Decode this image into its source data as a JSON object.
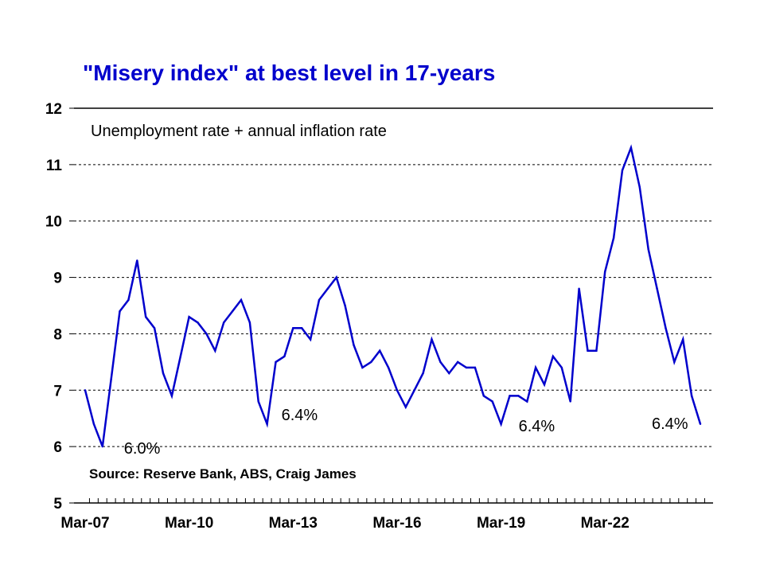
{
  "chart_data": {
    "type": "line",
    "title": "\"Misery index\" at best level in 17-years",
    "subtitle": "Unemployment rate + annual inflation rate",
    "source": "Source: Reserve Bank, ABS, Craig James",
    "xlabel": "",
    "ylabel": "",
    "ylim": [
      5,
      12
    ],
    "yticks": [
      5,
      6,
      7,
      8,
      9,
      10,
      11,
      12
    ],
    "grid": true,
    "line_color": "#0000cc",
    "title_color": "#0000cc",
    "x_tick_labels": [
      {
        "label": "Mar-07",
        "index": 0
      },
      {
        "label": "Mar-10",
        "index": 12
      },
      {
        "label": "Mar-13",
        "index": 24
      },
      {
        "label": "Mar-16",
        "index": 36
      },
      {
        "label": "Mar-19",
        "index": 48
      },
      {
        "label": "Mar-22",
        "index": 60
      }
    ],
    "series": [
      {
        "name": "Misery index",
        "values": [
          7.0,
          6.4,
          6.0,
          7.2,
          8.4,
          8.6,
          9.3,
          8.3,
          8.1,
          7.3,
          6.9,
          7.6,
          8.3,
          8.2,
          8.0,
          7.7,
          8.2,
          8.4,
          8.6,
          8.2,
          6.8,
          6.4,
          7.5,
          7.6,
          8.1,
          8.1,
          7.9,
          8.6,
          8.8,
          9.0,
          8.5,
          7.8,
          7.4,
          7.5,
          7.7,
          7.4,
          7.0,
          6.7,
          7.0,
          7.3,
          7.9,
          7.5,
          7.3,
          7.5,
          7.4,
          7.4,
          6.9,
          6.8,
          6.4,
          6.9,
          6.9,
          6.8,
          7.4,
          7.1,
          7.6,
          7.4,
          6.8,
          8.8,
          7.7,
          7.7,
          9.1,
          9.7,
          10.9,
          11.3,
          10.6,
          9.5,
          8.8,
          8.1,
          7.5,
          7.9,
          6.9,
          6.4
        ]
      }
    ],
    "annotations": [
      {
        "text": "6.0%",
        "index": 2,
        "value": 6.0
      },
      {
        "text": "6.4%",
        "index": 21,
        "value": 6.4
      },
      {
        "text": "6.4%",
        "index": 48,
        "value": 6.4
      },
      {
        "text": "6.4%",
        "index": 71,
        "value": 6.4
      }
    ]
  }
}
